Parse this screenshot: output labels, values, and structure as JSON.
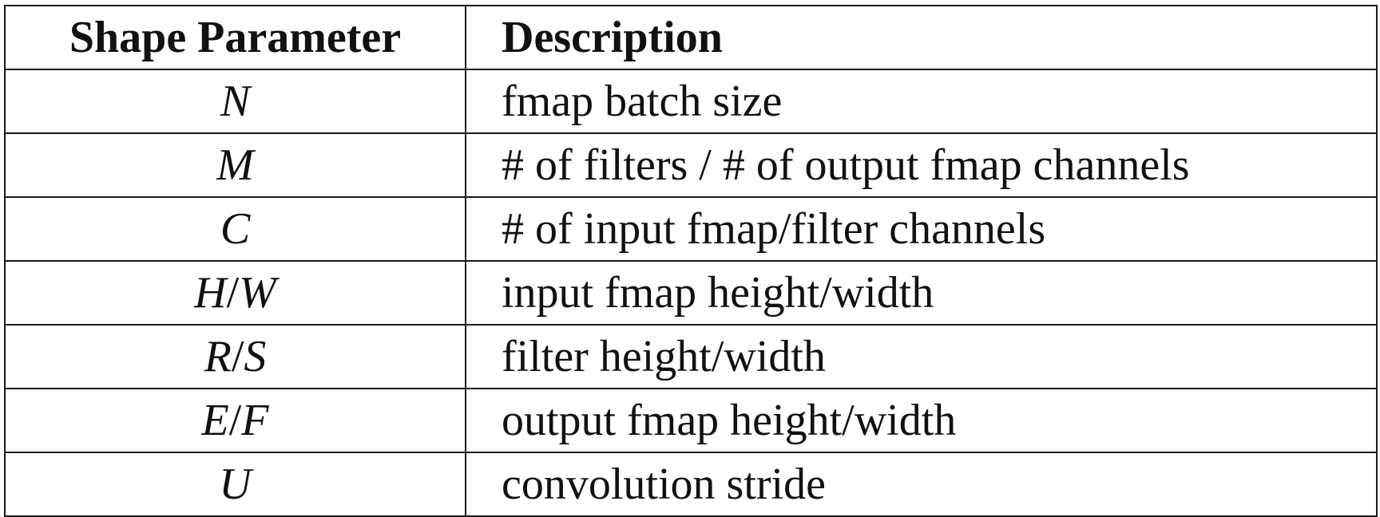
{
  "table": {
    "headers": {
      "parameter": "Shape Parameter",
      "description": "Description"
    },
    "rows": [
      {
        "param_parts": [
          "N"
        ],
        "description": "fmap batch size"
      },
      {
        "param_parts": [
          "M"
        ],
        "description": "# of filters / # of output fmap channels"
      },
      {
        "param_parts": [
          "C"
        ],
        "description": "# of input fmap/filter channels"
      },
      {
        "param_parts": [
          "H",
          "W"
        ],
        "description": "input fmap height/width"
      },
      {
        "param_parts": [
          "R",
          "S"
        ],
        "description": "filter height/width"
      },
      {
        "param_parts": [
          "E",
          "F"
        ],
        "description": "output fmap height/width"
      },
      {
        "param_parts": [
          "U"
        ],
        "description": "convolution stride"
      }
    ]
  }
}
